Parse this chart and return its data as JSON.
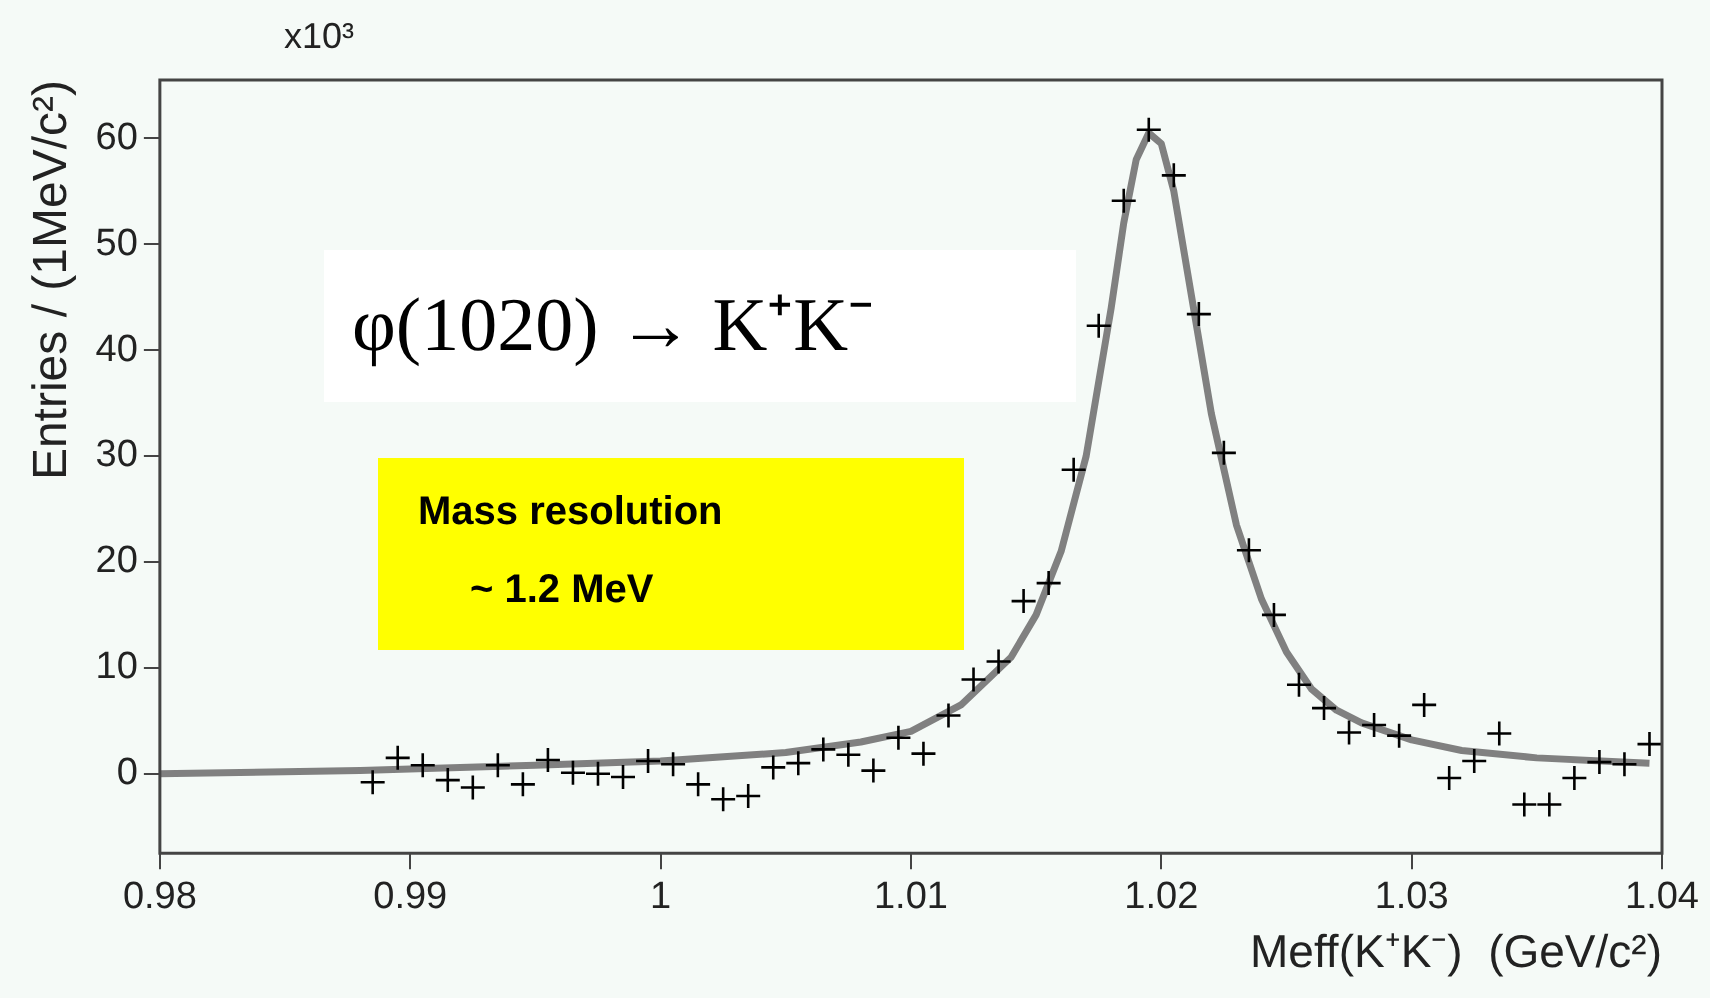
{
  "chart_data": {
    "type": "scatter",
    "xlabel": "Meff(K⁺K⁻)  (GeV/c²)",
    "ylabel": "Entries / (1MeV/c²)",
    "annotations": [
      "x10³",
      "φ(1020) → K⁺K⁻",
      "Mass resolution",
      "~ 1.2 MeV"
    ],
    "xlim": [
      0.98,
      1.04
    ],
    "xticks": [
      0.98,
      0.99,
      1,
      1.01,
      1.02,
      1.03,
      1.04
    ],
    "ylim": [
      -7.5,
      65.5
    ],
    "yticks": [
      0,
      10,
      20,
      30,
      40,
      50,
      60
    ],
    "grid": false,
    "legend": false,
    "marker": "cross",
    "series": [
      {
        "color": "#000000",
        "x": [
          0.9885,
          0.9895,
          0.9905,
          0.9915,
          0.9925,
          0.9935,
          0.9945,
          0.9955,
          0.9965,
          0.9975,
          0.9985,
          0.9995,
          1.0005,
          1.0015,
          1.0025,
          1.0035,
          1.0045,
          1.0055,
          1.0065,
          1.0075,
          1.0085,
          1.0095,
          1.0105,
          1.0115,
          1.0125,
          1.0135,
          1.0145,
          1.0155,
          1.0165,
          1.0175,
          1.0185,
          1.0195,
          1.0205,
          1.0215,
          1.0225,
          1.0235,
          1.0245,
          1.0255,
          1.0265,
          1.0275,
          1.0285,
          1.0295,
          1.0305,
          1.0315,
          1.0325,
          1.0335,
          1.0345,
          1.0355,
          1.0365,
          1.0375,
          1.0385,
          1.0395
        ],
        "values": [
          -0.8,
          1.5,
          0.8,
          -0.6,
          -1.3,
          0.8,
          -1.0,
          1.3,
          0.1,
          0,
          -0.3,
          1.2,
          0.9,
          -1.0,
          -2.4,
          -2.1,
          0.6,
          1.0,
          2.3,
          1.8,
          0.3,
          3.4,
          1.9,
          5.5,
          8.9,
          10.6,
          16.3,
          18.0,
          28.7,
          42.3,
          54.1,
          60.8,
          56.5,
          43.4,
          30.3,
          21.1,
          15.0,
          8.4,
          6.2,
          3.9,
          4.6,
          3.6,
          6.5,
          -0.4,
          1.2,
          3.8,
          -2.9,
          -2.9,
          -0.4,
          1.1,
          0.9,
          2.8
        ]
      },
      {
        "type": "line",
        "color": "#808080",
        "marker": "none",
        "x": [
          0.98,
          0.988,
          0.995,
          1.0,
          1.005,
          1.008,
          1.01,
          1.012,
          1.014,
          1.015,
          1.016,
          1.017,
          1.018,
          1.0185,
          1.019,
          1.0195,
          1.02,
          1.0205,
          1.021,
          1.022,
          1.023,
          1.024,
          1.025,
          1.026,
          1.027,
          1.028,
          1.03,
          1.032,
          1.035,
          1.0395
        ],
        "values": [
          0,
          0.3,
          0.8,
          1.2,
          2.0,
          3.0,
          4.0,
          6.5,
          11,
          15,
          21,
          30,
          44,
          52,
          58,
          60.5,
          59.5,
          55,
          48,
          34,
          23.5,
          16.5,
          11.5,
          8,
          6,
          4.8,
          3.2,
          2.2,
          1.5,
          1.0
        ]
      }
    ]
  }
}
